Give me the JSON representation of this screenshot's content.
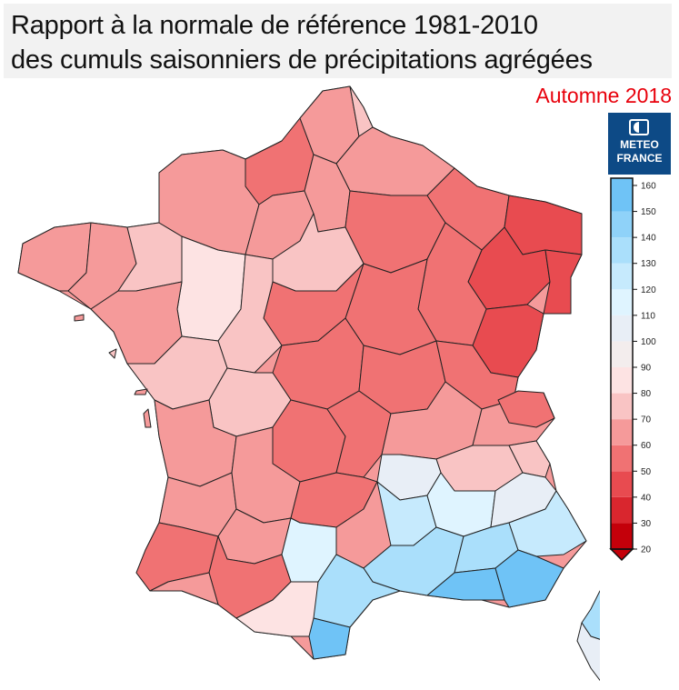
{
  "header": {
    "title_line1": "Rapport à la normale de référence 1981-2010",
    "title_line2": "des cumuls saisonniers de précipitations agrégées",
    "season": "Automne 2018",
    "season_color": "#e8000b"
  },
  "logo": {
    "icon": "meteo-france-logo",
    "line1": "METEO",
    "line2": "FRANCE",
    "color": "#0d4a86"
  },
  "legend": {
    "ticks": [
      20,
      30,
      40,
      50,
      60,
      70,
      80,
      90,
      100,
      110,
      120,
      130,
      140,
      150,
      160
    ],
    "colors": [
      "#c4000a",
      "#d9262e",
      "#e84b50",
      "#f07273",
      "#f59a9a",
      "#f9c4c4",
      "#fde3e3",
      "#f3eded",
      "#e8eef6",
      "#dff4ff",
      "#c6eafd",
      "#aadffb",
      "#8fd2f9",
      "#6fc3f6"
    ],
    "min": 20,
    "max": 160
  },
  "map": {
    "colors": {
      "ratio_30_40": "#d9262e",
      "ratio_40_50": "#e84b50",
      "ratio_50_60": "#f07273",
      "ratio_60_70": "#f59a9a",
      "ratio_70_80": "#f9c4c4",
      "ratio_80_90": "#fde3e3",
      "ratio_90_100": "#f3eded",
      "ratio_100_110": "#e8eef6",
      "ratio_110_120": "#dff4ff",
      "ratio_120_130": "#c6eafd",
      "ratio_130_140": "#aadffb",
      "ratio_150_160": "#6fc3f6"
    }
  }
}
